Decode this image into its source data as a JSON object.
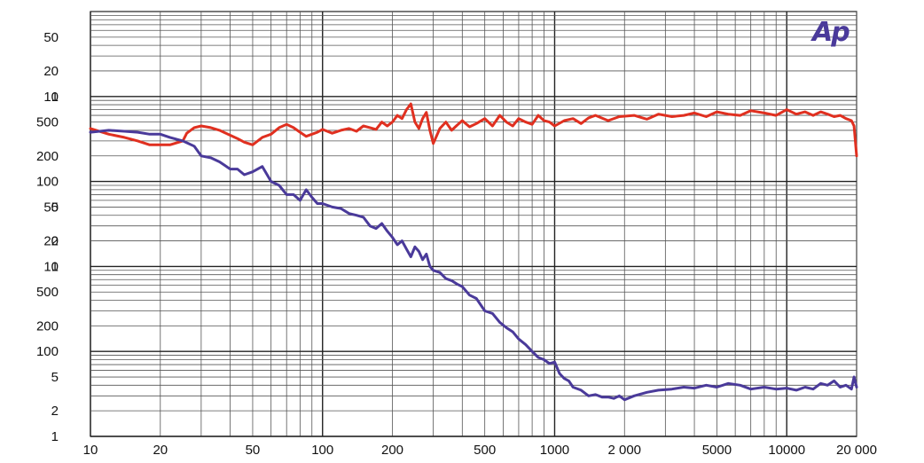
{
  "chart_data": {
    "type": "line",
    "title": "",
    "xlabel": "",
    "ylabel": "",
    "x_scale": "log",
    "y_scale": "log",
    "xlim": [
      10,
      20000
    ],
    "grid": true,
    "legend": "none",
    "logo": "Ap",
    "x_tick_labels": [
      {
        "value": 10,
        "label": "10"
      },
      {
        "value": 20,
        "label": "20"
      },
      {
        "value": 50,
        "label": "50"
      },
      {
        "value": 100,
        "label": "100"
      },
      {
        "value": 200,
        "label": "200"
      },
      {
        "value": 500,
        "label": "500"
      },
      {
        "value": 1000,
        "label": "1000"
      },
      {
        "value": 2000,
        "label": "2 000"
      },
      {
        "value": 5000,
        "label": "5000"
      },
      {
        "value": 10000,
        "label": "10000"
      },
      {
        "value": 20000,
        "label": "20 000"
      }
    ],
    "y_tick_labels": [
      {
        "decade": 3,
        "mult": 1,
        "label": "1"
      },
      {
        "decade": 2,
        "mult": 5,
        "label": "500"
      },
      {
        "decade": 2,
        "mult": 2,
        "label": "200"
      },
      {
        "decade": 2,
        "mult": 1,
        "label": "100"
      },
      {
        "decade": 2,
        "mult": 0.5,
        "label": "50"
      },
      {
        "decade": 2,
        "mult": 0.2,
        "label": "20"
      },
      {
        "decade": 2,
        "mult": 0.1,
        "label": "10"
      },
      {
        "decade": 1,
        "mult": 5,
        "label": "5"
      },
      {
        "decade": 1,
        "mult": 2,
        "label": "2"
      },
      {
        "decade": 1,
        "mult": 1,
        "label": "1"
      },
      {
        "decade": 0,
        "mult": 5,
        "label": "500"
      },
      {
        "decade": 0,
        "mult": 2,
        "label": "200"
      },
      {
        "decade": 0,
        "mult": 1,
        "label": "100"
      },
      {
        "decade": 0,
        "mult": 0.5,
        "label": "50"
      },
      {
        "decade": 0,
        "mult": 0.2,
        "label": "20"
      },
      {
        "decade": 0,
        "mult": 0.1,
        "label": "10"
      },
      {
        "decade": -1,
        "mult": 5,
        "label": "5"
      },
      {
        "decade": -1,
        "mult": 2,
        "label": "2"
      },
      {
        "decade": -1,
        "mult": 1,
        "label": "1"
      }
    ],
    "series": [
      {
        "color": "#e03020",
        "x": [
          10,
          12,
          14,
          16,
          18,
          20,
          22,
          25,
          26,
          28,
          30,
          33,
          36,
          40,
          43,
          46,
          50,
          55,
          60,
          65,
          70,
          75,
          80,
          85,
          90,
          95,
          100,
          110,
          120,
          130,
          140,
          150,
          160,
          170,
          180,
          190,
          200,
          210,
          220,
          230,
          240,
          250,
          260,
          270,
          280,
          290,
          300,
          320,
          340,
          360,
          380,
          400,
          430,
          460,
          500,
          540,
          580,
          620,
          660,
          700,
          750,
          800,
          850,
          900,
          950,
          1000,
          1100,
          1200,
          1300,
          1400,
          1500,
          1700,
          1900,
          2200,
          2500,
          2800,
          3200,
          3600,
          4000,
          4500,
          5000,
          5600,
          6300,
          7000,
          8000,
          9000,
          10000,
          11000,
          12000,
          13000,
          14000,
          15000,
          16000,
          17000,
          18000,
          19000,
          19500,
          20000
        ],
        "y": [
          0.42,
          0.36,
          0.33,
          0.3,
          0.27,
          0.27,
          0.27,
          0.3,
          0.37,
          0.43,
          0.45,
          0.43,
          0.4,
          0.35,
          0.32,
          0.29,
          0.27,
          0.33,
          0.36,
          0.43,
          0.47,
          0.43,
          0.38,
          0.34,
          0.36,
          0.38,
          0.41,
          0.37,
          0.4,
          0.42,
          0.39,
          0.45,
          0.43,
          0.41,
          0.5,
          0.45,
          0.5,
          0.6,
          0.55,
          0.7,
          0.82,
          0.5,
          0.42,
          0.55,
          0.65,
          0.4,
          0.28,
          0.42,
          0.5,
          0.4,
          0.46,
          0.52,
          0.44,
          0.48,
          0.55,
          0.45,
          0.6,
          0.5,
          0.45,
          0.55,
          0.5,
          0.47,
          0.6,
          0.52,
          0.5,
          0.45,
          0.52,
          0.55,
          0.48,
          0.56,
          0.6,
          0.52,
          0.58,
          0.6,
          0.54,
          0.62,
          0.58,
          0.6,
          0.64,
          0.58,
          0.66,
          0.62,
          0.6,
          0.68,
          0.64,
          0.6,
          0.7,
          0.62,
          0.66,
          0.6,
          0.66,
          0.62,
          0.58,
          0.6,
          0.55,
          0.52,
          0.45,
          0.2
        ]
      },
      {
        "color": "#4a3a9a",
        "x": [
          10,
          12,
          14,
          16,
          18,
          20,
          22,
          25,
          28,
          30,
          33,
          36,
          40,
          43,
          46,
          50,
          55,
          60,
          65,
          70,
          75,
          80,
          85,
          90,
          95,
          100,
          110,
          120,
          130,
          140,
          150,
          160,
          170,
          180,
          190,
          200,
          210,
          220,
          230,
          240,
          250,
          260,
          270,
          280,
          290,
          300,
          320,
          340,
          360,
          380,
          400,
          430,
          460,
          500,
          540,
          580,
          620,
          660,
          700,
          750,
          800,
          850,
          900,
          950,
          1000,
          1050,
          1100,
          1150,
          1200,
          1300,
          1400,
          1500,
          1600,
          1700,
          1800,
          1900,
          2000,
          2200,
          2500,
          2800,
          3200,
          3600,
          4000,
          4500,
          5000,
          5600,
          6300,
          7000,
          8000,
          9000,
          10000,
          11000,
          12000,
          13000,
          14000,
          15000,
          16000,
          17000,
          18000,
          19000,
          19500,
          20000
        ],
        "y": [
          0.38,
          0.4,
          0.39,
          0.38,
          0.36,
          0.36,
          0.33,
          0.3,
          0.26,
          0.2,
          0.19,
          0.17,
          0.14,
          0.14,
          0.12,
          0.13,
          0.15,
          0.1,
          0.09,
          0.07,
          0.07,
          0.06,
          0.08,
          0.065,
          0.055,
          0.055,
          0.05,
          0.048,
          0.042,
          0.04,
          0.038,
          0.03,
          0.028,
          0.032,
          0.026,
          0.022,
          0.018,
          0.02,
          0.016,
          0.013,
          0.017,
          0.015,
          0.012,
          0.014,
          0.01,
          0.009,
          0.0085,
          0.0072,
          0.0068,
          0.0062,
          0.0058,
          0.0046,
          0.0042,
          0.003,
          0.0028,
          0.0022,
          0.0019,
          0.0017,
          0.0014,
          0.0012,
          0.001,
          0.00085,
          0.0008,
          0.00072,
          0.00075,
          0.00055,
          0.00048,
          0.00045,
          0.00038,
          0.00035,
          0.0003,
          0.00031,
          0.00029,
          0.00029,
          0.00028,
          0.0003,
          0.00027,
          0.0003,
          0.00033,
          0.00035,
          0.00036,
          0.00038,
          0.00037,
          0.0004,
          0.00038,
          0.00042,
          0.0004,
          0.00036,
          0.00038,
          0.00036,
          0.00037,
          0.00035,
          0.00038,
          0.00036,
          0.00042,
          0.0004,
          0.00045,
          0.00038,
          0.0004,
          0.00036,
          0.0005,
          0.00038
        ]
      }
    ]
  }
}
